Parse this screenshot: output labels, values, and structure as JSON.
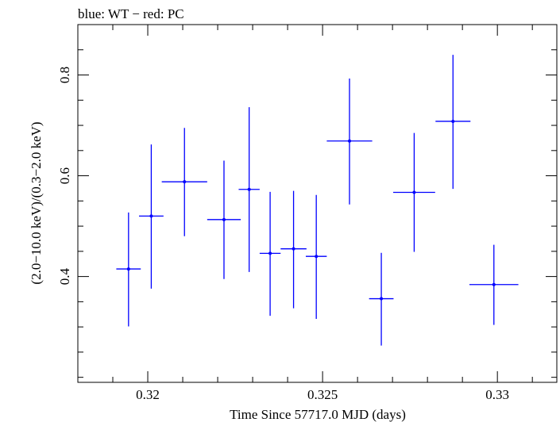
{
  "chart_data": {
    "type": "scatter",
    "title": "blue: WT − red: PC",
    "xlabel": "Time Since 57717.0 MJD (days)",
    "ylabel": "(2.0−10.0 keV)/(0.3−2.0 keV)",
    "xlim": [
      0.318,
      0.3317
    ],
    "ylim": [
      0.19,
      0.9
    ],
    "x_ticks": [
      0.32,
      0.325,
      0.33
    ],
    "x_tick_labels": [
      "0.32",
      "0.325",
      "0.33"
    ],
    "y_ticks": [
      0.4,
      0.6,
      0.8
    ],
    "y_tick_labels": [
      "0.4",
      "0.6",
      "0.8"
    ],
    "grid": false,
    "series": [
      {
        "color": "#0000ff",
        "points": [
          {
            "x": 0.31945,
            "xerr": 0.00035,
            "y": 0.415,
            "ylo": 0.301,
            "yhi": 0.527
          },
          {
            "x": 0.3201,
            "xerr": 0.00035,
            "y": 0.52,
            "ylo": 0.376,
            "yhi": 0.662
          },
          {
            "x": 0.32105,
            "xerr": 0.00065,
            "y": 0.588,
            "ylo": 0.48,
            "yhi": 0.695
          },
          {
            "x": 0.32218,
            "xerr": 0.00048,
            "y": 0.513,
            "ylo": 0.395,
            "yhi": 0.63
          },
          {
            "x": 0.3229,
            "xerr": 0.0003,
            "y": 0.573,
            "ylo": 0.409,
            "yhi": 0.736
          },
          {
            "x": 0.3235,
            "xerr": 0.0003,
            "y": 0.446,
            "ylo": 0.322,
            "yhi": 0.568
          },
          {
            "x": 0.32417,
            "xerr": 0.00037,
            "y": 0.455,
            "ylo": 0.337,
            "yhi": 0.57
          },
          {
            "x": 0.32482,
            "xerr": 0.0003,
            "y": 0.44,
            "ylo": 0.316,
            "yhi": 0.562
          },
          {
            "x": 0.32577,
            "xerr": 0.00065,
            "y": 0.669,
            "ylo": 0.543,
            "yhi": 0.793
          },
          {
            "x": 0.32668,
            "xerr": 0.00035,
            "y": 0.356,
            "ylo": 0.263,
            "yhi": 0.447
          },
          {
            "x": 0.32762,
            "xerr": 0.0006,
            "y": 0.567,
            "ylo": 0.449,
            "yhi": 0.685
          },
          {
            "x": 0.32873,
            "xerr": 0.0005,
            "y": 0.708,
            "ylo": 0.574,
            "yhi": 0.84
          },
          {
            "x": 0.3299,
            "xerr": 0.0007,
            "y": 0.384,
            "ylo": 0.304,
            "yhi": 0.463
          }
        ]
      }
    ]
  }
}
